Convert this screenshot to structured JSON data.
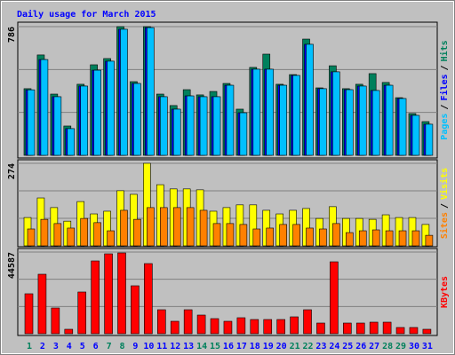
{
  "title": "Daily usage for March 2015",
  "legend_separator": "/",
  "chart_data": [
    {
      "type": "bar",
      "ylim": [
        0,
        786
      ],
      "yticks": [
        786
      ],
      "series": [
        {
          "name": "Hits",
          "color": "#00805c",
          "values": [
            407,
            613,
            374,
            179,
            434,
            553,
            591,
            786,
            450,
            786,
            374,
            304,
            401,
            369,
            390,
            439,
            282,
            537,
            618,
            434,
            493,
            710,
            412,
            547,
            407,
            434,
            499,
            445,
            352,
            255,
            206
          ]
        },
        {
          "name": "Files",
          "color": "#0000ff",
          "values": [
            400,
            585,
            358,
            163,
            423,
            520,
            575,
            770,
            439,
            780,
            358,
            282,
            363,
            358,
            358,
            428,
            260,
            526,
            526,
            428,
            488,
            678,
            407,
            510,
            401,
            423,
            396,
            428,
            347,
            244,
            190
          ]
        },
        {
          "name": "Pages",
          "color": "#00c0ff",
          "values": [
            400,
            585,
            358,
            163,
            423,
            520,
            575,
            770,
            439,
            780,
            358,
            282,
            363,
            358,
            358,
            428,
            260,
            526,
            526,
            428,
            488,
            678,
            407,
            510,
            401,
            423,
            396,
            428,
            347,
            244,
            190
          ]
        }
      ]
    },
    {
      "type": "bar",
      "ylim": [
        0,
        274
      ],
      "yticks": [
        274
      ],
      "series": [
        {
          "name": "Visits",
          "color": "#ffff00",
          "values": [
            94,
            159,
            127,
            82,
            147,
            106,
            115,
            183,
            171,
            274,
            203,
            189,
            189,
            186,
            115,
            127,
            136,
            136,
            118,
            106,
            118,
            124,
            91,
            130,
            91,
            91,
            88,
            103,
            94,
            94,
            71
          ]
        },
        {
          "name": "Sites",
          "color": "#ff8000",
          "values": [
            56,
            88,
            74,
            59,
            91,
            77,
            50,
            118,
            88,
            127,
            127,
            127,
            127,
            118,
            74,
            74,
            71,
            56,
            59,
            71,
            71,
            59,
            56,
            74,
            44,
            50,
            53,
            50,
            50,
            50,
            35
          ]
        }
      ]
    },
    {
      "type": "bar",
      "ylim": [
        0,
        44587
      ],
      "yticks": [
        44587
      ],
      "categories": [
        "1",
        "2",
        "3",
        "4",
        "5",
        "6",
        "7",
        "8",
        "9",
        "10",
        "11",
        "12",
        "13",
        "14",
        "15",
        "16",
        "17",
        "18",
        "19",
        "20",
        "21",
        "22",
        "23",
        "24",
        "25",
        "26",
        "27",
        "28",
        "29",
        "30",
        "31"
      ],
      "category_colors": [
        "#00805c",
        "#0000ff",
        "#0000ff",
        "#0000ff",
        "#0000ff",
        "#0000ff",
        "#00805c",
        "#00805c",
        "#0000ff",
        "#0000ff",
        "#0000ff",
        "#0000ff",
        "#0000ff",
        "#00805c",
        "#00805c",
        "#0000ff",
        "#0000ff",
        "#0000ff",
        "#0000ff",
        "#0000ff",
        "#00805c",
        "#00805c",
        "#0000ff",
        "#0000ff",
        "#0000ff",
        "#0000ff",
        "#0000ff",
        "#00805c",
        "#00805c",
        "#0000ff",
        "#0000ff"
      ],
      "series": [
        {
          "name": "KBytes",
          "color": "#ff0000",
          "values": [
            21809,
            32471,
            14055,
            2423,
            22778,
            39740,
            43617,
            44102,
            26171,
            38287,
            13085,
            6785,
            13085,
            10178,
            8239,
            6785,
            8724,
            7754,
            7754,
            7754,
            9208,
            13085,
            5816,
            39256,
            5816,
            5816,
            6300,
            6300,
            3392,
            3392,
            2423
          ]
        }
      ]
    }
  ]
}
